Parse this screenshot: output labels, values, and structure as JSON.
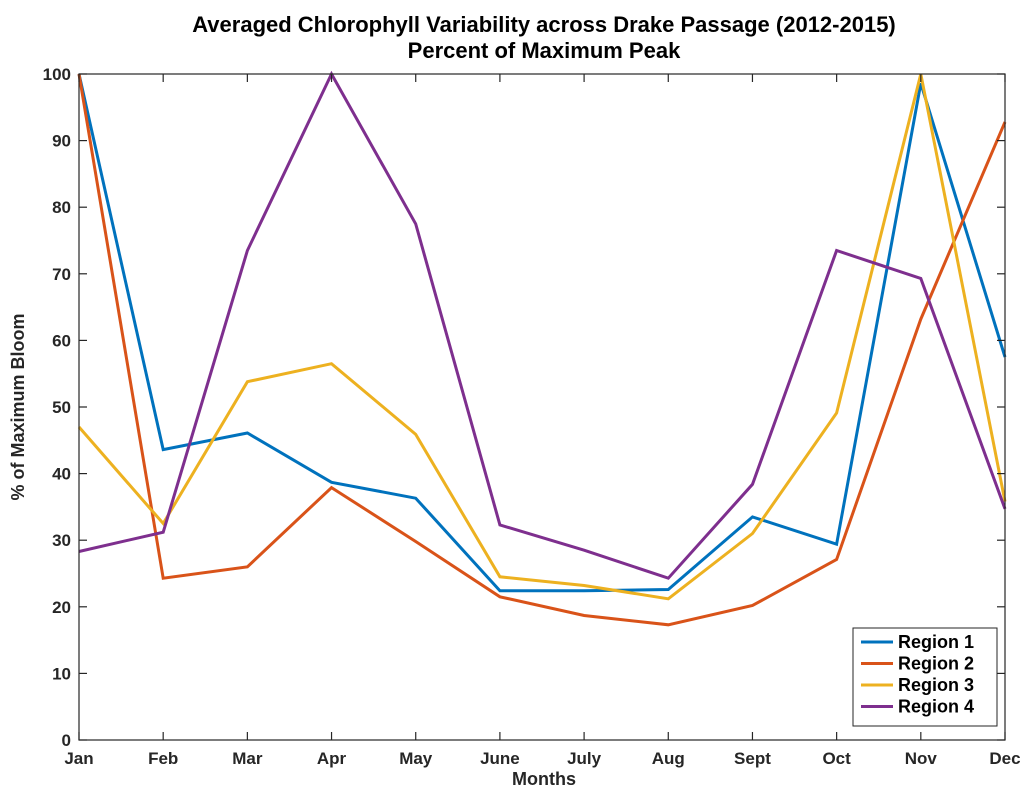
{
  "chart_data": {
    "type": "line",
    "title": "Averaged Chlorophyll Variability across Drake Passage (2012-2015)",
    "subtitle": "Percent of Maximum Peak",
    "xlabel": "Months",
    "ylabel": "% of Maximum Bloom",
    "categories": [
      "Jan",
      "Feb",
      "Mar",
      "Apr",
      "May",
      "June",
      "July",
      "Aug",
      "Sept",
      "Oct",
      "Nov",
      "Dec"
    ],
    "ylim": [
      0,
      100
    ],
    "yticks": [
      "0",
      "10",
      "20",
      "30",
      "40",
      "50",
      "60",
      "70",
      "80",
      "90",
      "100"
    ],
    "grid": false,
    "legend_position": "bottom-right",
    "series": [
      {
        "name": "Region 1",
        "color": "#0072BD",
        "values": [
          100,
          43.6,
          46.1,
          38.7,
          36.3,
          22.4,
          22.4,
          22.6,
          33.5,
          29.4,
          98.6,
          57.5
        ]
      },
      {
        "name": "Region 2",
        "color": "#D95319",
        "values": [
          100,
          24.3,
          26.0,
          37.9,
          29.8,
          21.5,
          18.7,
          17.3,
          20.2,
          27.1,
          63.2,
          92.8
        ]
      },
      {
        "name": "Region 3",
        "color": "#EDB120",
        "values": [
          47.0,
          32.5,
          53.8,
          56.5,
          45.9,
          24.5,
          23.2,
          21.2,
          31.0,
          49.1,
          100,
          35.8
        ]
      },
      {
        "name": "Region 4",
        "color": "#7E2F8E",
        "values": [
          28.3,
          31.2,
          73.5,
          100,
          77.5,
          32.3,
          28.5,
          24.3,
          38.4,
          73.5,
          69.3,
          34.7
        ]
      }
    ]
  }
}
